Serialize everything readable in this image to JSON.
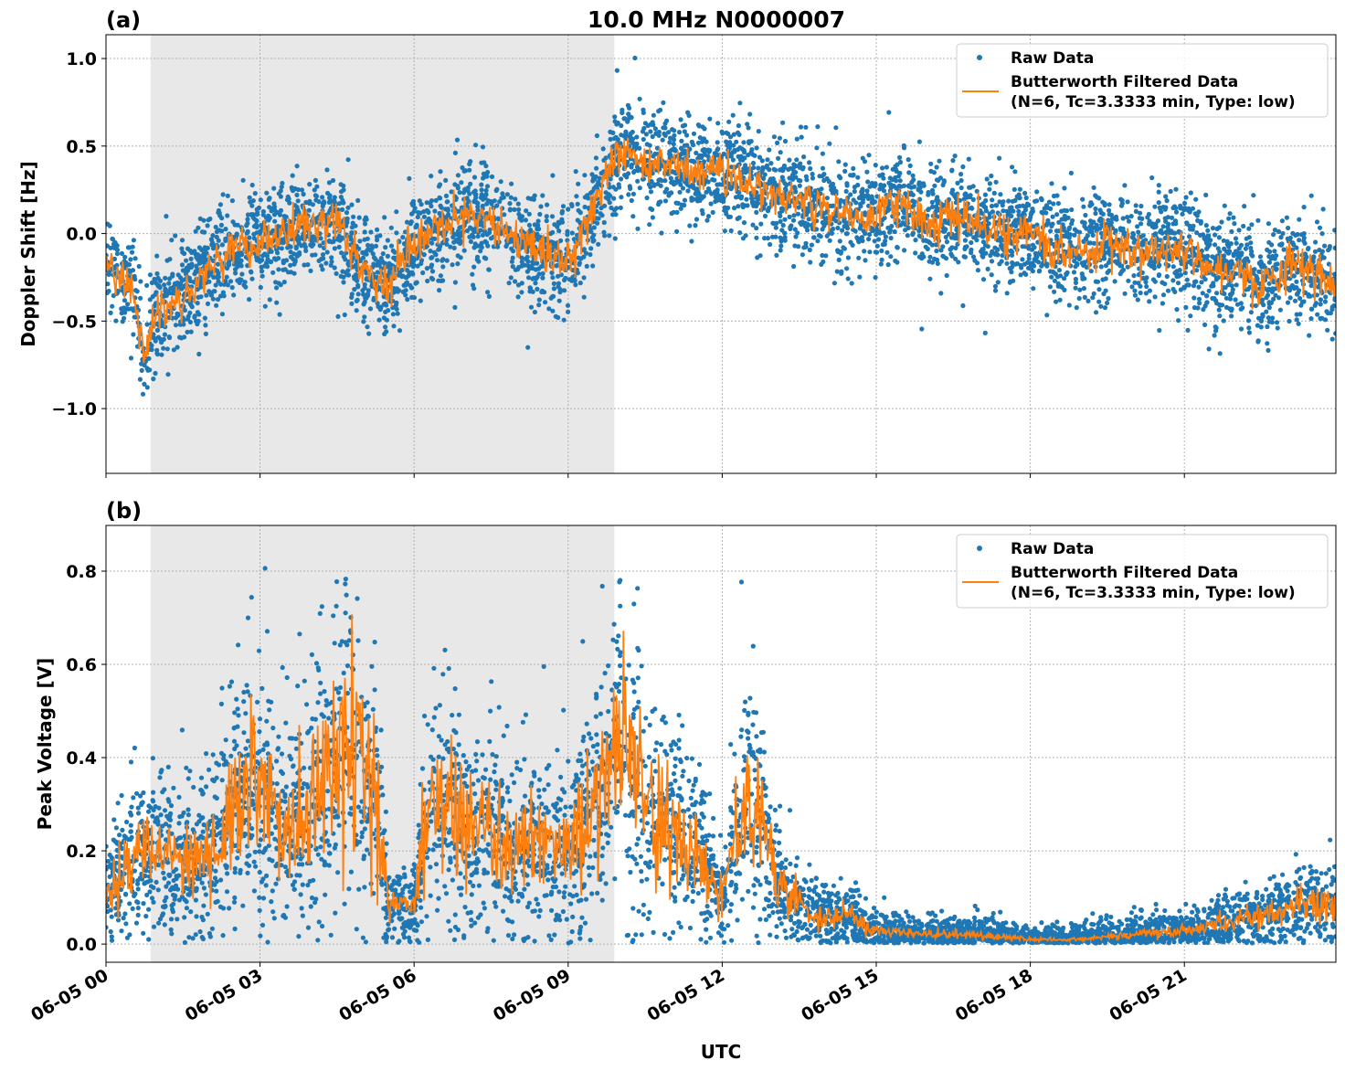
{
  "figure_title": "10.0 MHz N0000007",
  "colors": {
    "raw": "#1f77b4",
    "filtered": "#ff7f0e",
    "shade": "#e8e8e8",
    "grid": "#b0b0b0"
  },
  "legend": {
    "raw": "Raw Data",
    "filtered_line1": "Butterworth Filtered Data",
    "filtered_line2": "(N=6, Tc=3.3333 min, Type: low)",
    "placement": "upper-right"
  },
  "chart_data": [
    {
      "type": "scatter",
      "panel_label": "(a)",
      "title": "10.0 MHz N0000007",
      "ylabel": "Doppler Shift [Hz]",
      "xlabel": "",
      "x_unit": "hours UTC on 06-05",
      "xlim": [
        0,
        23.95
      ],
      "ylim": [
        -1.37,
        1.136
      ],
      "grid": true,
      "shaded_interval_hours": [
        0.87,
        9.9
      ],
      "yticks": [
        {
          "v": 1.0,
          "label": "1.0"
        },
        {
          "v": 0.5,
          "label": "0.5"
        },
        {
          "v": 0.0,
          "label": "0.0"
        },
        {
          "v": -0.5,
          "label": "−0.5"
        },
        {
          "v": -1.0,
          "label": "−1.0"
        }
      ],
      "raw_spread": 0.15,
      "filtered": {
        "x": [
          0,
          0.5,
          0.75,
          1,
          1.5,
          2,
          2.5,
          3,
          3.5,
          4,
          4.5,
          5,
          5.5,
          6,
          6.5,
          7,
          7.5,
          8,
          8.5,
          9,
          9.5,
          10,
          10.5,
          11,
          11.5,
          12,
          12.5,
          13,
          13.5,
          14,
          14.5,
          15,
          15.5,
          16,
          16.5,
          17,
          17.5,
          18,
          18.5,
          19,
          19.5,
          20,
          20.5,
          21,
          21.5,
          22,
          22.5,
          23,
          23.5,
          23.95
        ],
        "y": [
          -0.2,
          -0.3,
          -0.7,
          -0.45,
          -0.35,
          -0.2,
          -0.1,
          -0.05,
          0.0,
          0.05,
          0.05,
          -0.2,
          -0.3,
          -0.05,
          0.0,
          0.1,
          0.1,
          -0.05,
          -0.1,
          -0.15,
          0.15,
          0.5,
          0.4,
          0.4,
          0.35,
          0.35,
          0.3,
          0.2,
          0.2,
          0.15,
          0.1,
          0.1,
          0.2,
          0.05,
          0.1,
          0.05,
          0.0,
          0.0,
          -0.1,
          -0.1,
          -0.05,
          -0.1,
          -0.1,
          -0.05,
          -0.2,
          -0.2,
          -0.3,
          -0.2,
          -0.2,
          -0.3
        ]
      }
    },
    {
      "type": "scatter",
      "panel_label": "(b)",
      "title": "",
      "ylabel": "Peak Voltage [V]",
      "xlabel": "UTC",
      "x_unit": "hours UTC on 06-05",
      "xlim": [
        0,
        23.95
      ],
      "ylim": [
        -0.039,
        0.898
      ],
      "grid": true,
      "shaded_interval_hours": [
        0.87,
        9.9
      ],
      "yticks": [
        {
          "v": 0.8,
          "label": "0.8"
        },
        {
          "v": 0.6,
          "label": "0.6"
        },
        {
          "v": 0.4,
          "label": "0.4"
        },
        {
          "v": 0.2,
          "label": "0.2"
        },
        {
          "v": 0.0,
          "label": "0.0"
        }
      ],
      "raw_spread_relative": 0.4,
      "filtered": {
        "x": [
          0,
          0.5,
          1,
          1.5,
          2,
          2.5,
          3,
          3.5,
          4,
          4.5,
          5,
          5.3,
          5.5,
          6,
          6.3,
          6.5,
          7,
          7.5,
          8,
          8.5,
          9,
          9.5,
          10,
          10.5,
          11,
          11.5,
          12,
          12.5,
          13,
          13.5,
          14,
          14.5,
          15,
          16,
          17,
          18,
          19,
          20,
          21,
          22,
          23,
          23.95
        ],
        "y": [
          0.1,
          0.18,
          0.2,
          0.18,
          0.2,
          0.3,
          0.35,
          0.25,
          0.3,
          0.45,
          0.4,
          0.3,
          0.08,
          0.08,
          0.3,
          0.3,
          0.25,
          0.25,
          0.2,
          0.22,
          0.2,
          0.3,
          0.45,
          0.3,
          0.25,
          0.2,
          0.1,
          0.35,
          0.15,
          0.08,
          0.06,
          0.06,
          0.03,
          0.02,
          0.02,
          0.01,
          0.01,
          0.02,
          0.03,
          0.05,
          0.07,
          0.1
        ]
      }
    }
  ],
  "xticks": [
    {
      "v": 0,
      "label": "06-05 00"
    },
    {
      "v": 3,
      "label": "06-05 03"
    },
    {
      "v": 6,
      "label": "06-05 06"
    },
    {
      "v": 9,
      "label": "06-05 09"
    },
    {
      "v": 12,
      "label": "06-05 12"
    },
    {
      "v": 15,
      "label": "06-05 15"
    },
    {
      "v": 18,
      "label": "06-05 18"
    },
    {
      "v": 21,
      "label": "06-05 21"
    }
  ]
}
